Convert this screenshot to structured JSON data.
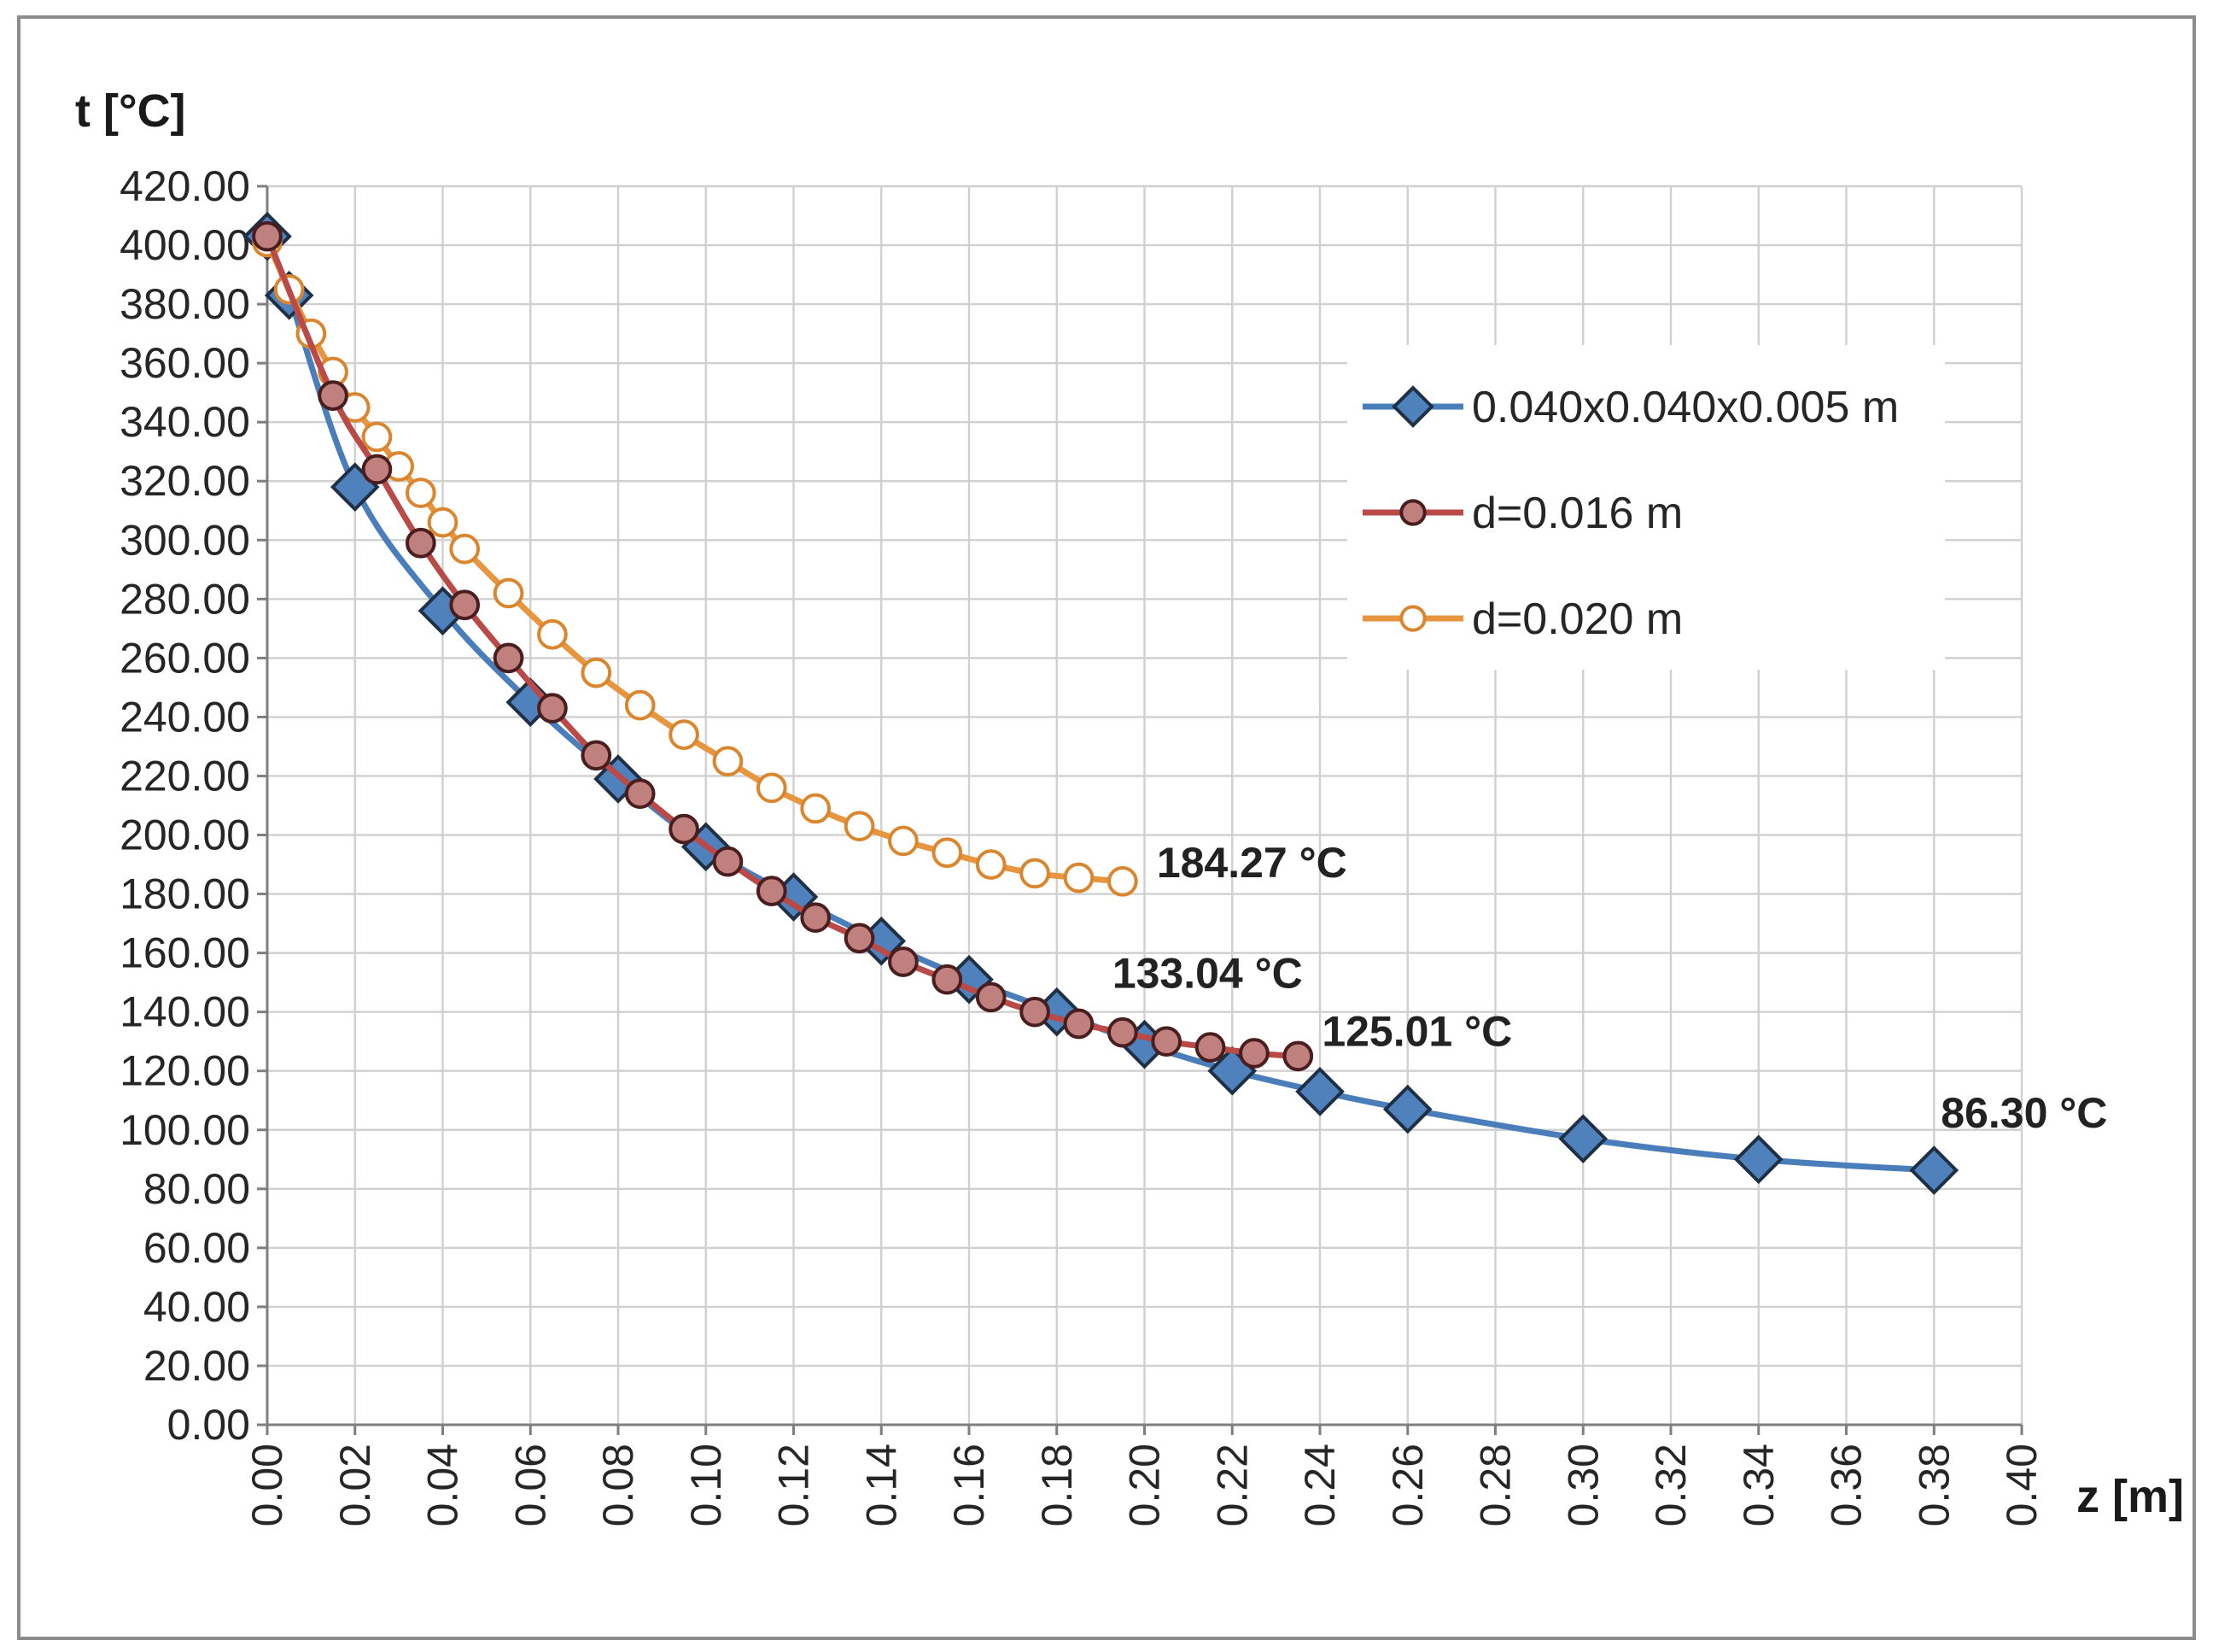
{
  "chart_data": {
    "type": "line",
    "title": "",
    "ylabel": "t [°C]",
    "xlabel": "z [m]",
    "xlim": [
      0,
      0.4
    ],
    "ylim": [
      0,
      420
    ],
    "x_ticks": [
      "0.00",
      "0.02",
      "0.04",
      "0.06",
      "0.08",
      "0.10",
      "0.12",
      "0.14",
      "0.16",
      "0.18",
      "0.20",
      "0.22",
      "0.24",
      "0.26",
      "0.28",
      "0.30",
      "0.32",
      "0.34",
      "0.36",
      "0.38",
      "0.40"
    ],
    "y_ticks": [
      "0.00",
      "20.00",
      "40.00",
      "60.00",
      "80.00",
      "100.00",
      "120.00",
      "140.00",
      "160.00",
      "180.00",
      "200.00",
      "220.00",
      "240.00",
      "260.00",
      "280.00",
      "300.00",
      "320.00",
      "340.00",
      "360.00",
      "380.00",
      "400.00",
      "420.00"
    ],
    "grid": true,
    "legend_position": "upper-right",
    "series": [
      {
        "name": "0.040x0.040x0.005 m",
        "color": "#4a7ebb",
        "marker": "diamond",
        "marker_fill": "#4f81bd",
        "x": [
          0.0,
          0.005,
          0.02,
          0.04,
          0.06,
          0.08,
          0.1,
          0.12,
          0.14,
          0.16,
          0.18,
          0.2,
          0.22,
          0.24,
          0.26,
          0.3,
          0.34,
          0.38
        ],
        "y": [
          403,
          383,
          318,
          276,
          245,
          219,
          196,
          179,
          164,
          151,
          140,
          129,
          120,
          113,
          107,
          97,
          90,
          86.3
        ]
      },
      {
        "name": "d=0.016 m",
        "color": "#b94a48",
        "marker": "circle",
        "marker_fill": "#c0807e",
        "x": [
          0.0,
          0.015,
          0.025,
          0.035,
          0.045,
          0.055,
          0.065,
          0.075,
          0.085,
          0.095,
          0.105,
          0.115,
          0.125,
          0.135,
          0.145,
          0.155,
          0.165,
          0.175,
          0.185,
          0.195,
          0.205,
          0.215,
          0.225,
          0.235
        ],
        "y": [
          403,
          349,
          324,
          299,
          278,
          260,
          243,
          227,
          214,
          202,
          191,
          181,
          172,
          165,
          157,
          151,
          145,
          140,
          136,
          133.04,
          130,
          128,
          126,
          125.01
        ]
      },
      {
        "name": "d=0.020 m",
        "color": "#e7953e",
        "marker": "circle",
        "marker_fill": "#ffffff",
        "x": [
          0.0,
          0.005,
          0.01,
          0.015,
          0.02,
          0.025,
          0.03,
          0.035,
          0.04,
          0.045,
          0.055,
          0.065,
          0.075,
          0.085,
          0.095,
          0.105,
          0.115,
          0.125,
          0.135,
          0.145,
          0.155,
          0.165,
          0.175,
          0.185,
          0.195
        ],
        "y": [
          401,
          385,
          370,
          357,
          345,
          335,
          325,
          316,
          306,
          297,
          282,
          268,
          255,
          244,
          234,
          225,
          216,
          209,
          203,
          198,
          194,
          190,
          187,
          185.5,
          184.27
        ]
      }
    ],
    "annotations": [
      {
        "text": "184.27 °C",
        "x": 0.195,
        "y": 184.27
      },
      {
        "text": "133.04 °C",
        "x": 0.195,
        "y": 133.04
      },
      {
        "text": "125.01 °C",
        "x": 0.235,
        "y": 125.01
      },
      {
        "text": "86.30 °C",
        "x": 0.38,
        "y": 86.3
      }
    ]
  }
}
